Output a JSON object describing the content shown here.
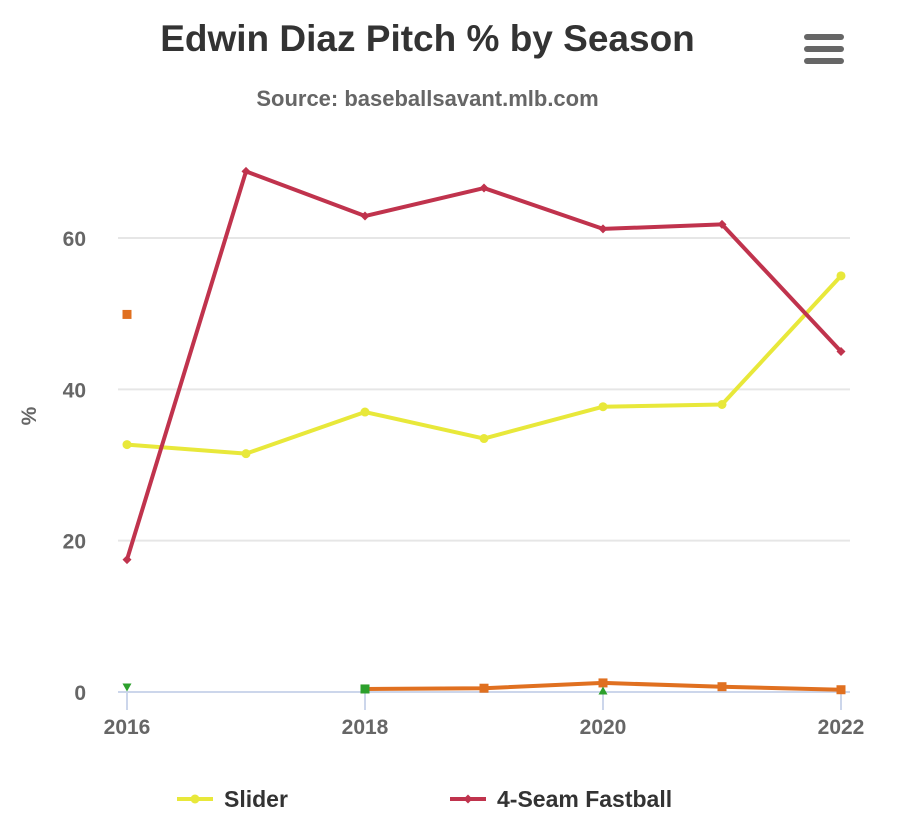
{
  "header": {
    "title": "Edwin Diaz Pitch % by Season",
    "subtitle": "Source: baseballsavant.mlb.com",
    "menu_icon": "hamburger-menu-icon"
  },
  "chart_data": {
    "type": "line",
    "title": "Edwin Diaz Pitch % by Season",
    "subtitle": "Source: baseballsavant.mlb.com",
    "xlabel": "",
    "ylabel": "%",
    "xlim": [
      2016,
      2022
    ],
    "ylim": [
      0,
      70
    ],
    "x_ticks": [
      "2016",
      "2018",
      "2020",
      "2022"
    ],
    "y_ticks": [
      "0",
      "20",
      "40",
      "60"
    ],
    "grid": true,
    "legend_position": "bottom",
    "series": [
      {
        "name": "Slider",
        "color": "#e8e83a",
        "marker": "circle",
        "in_legend": true,
        "x": [
          2016,
          2017,
          2018,
          2019,
          2020,
          2021,
          2022
        ],
        "values": [
          32.7,
          31.5,
          37.0,
          33.5,
          37.7,
          38.0,
          55.0
        ]
      },
      {
        "name": "4-Seam Fastball",
        "color": "#c0334d",
        "marker": "diamond",
        "in_legend": true,
        "x": [
          2016,
          2017,
          2018,
          2019,
          2020,
          2021,
          2022
        ],
        "values": [
          17.5,
          68.8,
          62.9,
          66.6,
          61.2,
          61.8,
          45.0
        ]
      },
      {
        "name": "",
        "color": "#e07020",
        "marker": "square",
        "in_legend": false,
        "x": [
          2018,
          2019,
          2020,
          2021,
          2022
        ],
        "values": [
          0.4,
          0.5,
          1.2,
          0.7,
          0.3
        ]
      },
      {
        "name": "",
        "color": "#e07020",
        "marker": "square",
        "in_legend": false,
        "x": [
          2016
        ],
        "values": [
          49.9
        ]
      },
      {
        "name": "",
        "color": "#2ca02c",
        "marker": "triangle-down",
        "in_legend": false,
        "x": [
          2016
        ],
        "values": [
          0.6
        ]
      },
      {
        "name": "",
        "color": "#2ca02c",
        "marker": "square",
        "in_legend": false,
        "x": [
          2018
        ],
        "values": [
          0.4
        ]
      },
      {
        "name": "",
        "color": "#2ca02c",
        "marker": "triangle-up",
        "in_legend": false,
        "x": [
          2020
        ],
        "values": [
          0.2
        ]
      }
    ]
  }
}
